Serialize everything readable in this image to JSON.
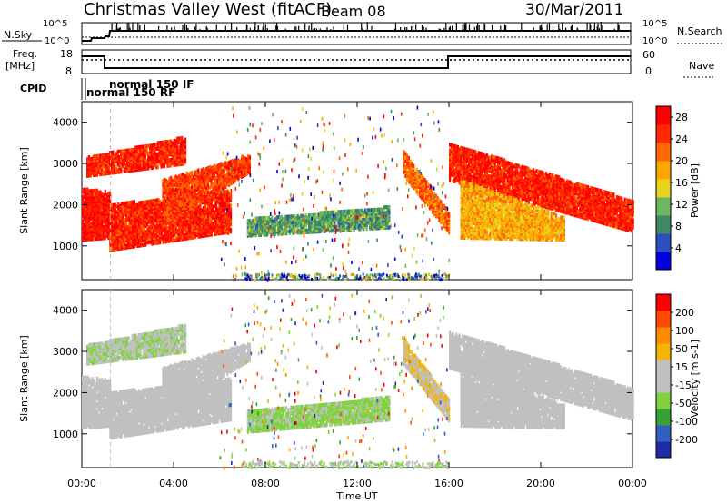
{
  "header": {
    "station": "Christmas Valley West (fitACF)",
    "beam": "Beam 08",
    "date": "30/Mar/2011"
  },
  "top_panel": {
    "left_labels": [
      "N.Sky",
      "Freq.",
      "[MHz]",
      "CPID"
    ],
    "right_labels": [
      "N.Search",
      "Nave"
    ],
    "nsky_ticks": [
      "10^5",
      "10^0"
    ],
    "nsearch_ticks": [
      "10^5",
      "10^0"
    ],
    "freq_ticks": [
      "18",
      "8"
    ],
    "nave_ticks": [
      "60",
      "0"
    ],
    "cpid_labels": [
      "normal 150 IF",
      "normal 150 RF"
    ]
  },
  "colors": {
    "power": [
      "#0000e0",
      "#2d4fbd",
      "#3d8a64",
      "#6fb75c",
      "#e9d21c",
      "#ffa500",
      "#ff6a00",
      "#ff2a00",
      "#ff0000"
    ],
    "velocity": [
      "#1f2ca8",
      "#2f5fc0",
      "#35a035",
      "#7ed43a",
      "#c0c0c0",
      "#c0c0c0",
      "#f4b400",
      "#ff8a00",
      "#ff4a00",
      "#ff0000"
    ],
    "ground_scatter": "#c0c0c0"
  },
  "chart_data": [
    {
      "type": "heatmap",
      "title": "Power",
      "xlabel": "Time UT",
      "ylabel": "Slant Range [km]",
      "x_ticks": [
        "00:00",
        "04:00",
        "08:00",
        "12:00",
        "16:00",
        "20:00",
        "00:00"
      ],
      "y_ticks": [
        "1000",
        "2000",
        "3000",
        "4000"
      ],
      "xlim": [
        0,
        24
      ],
      "ylim": [
        180,
        4500
      ],
      "colorbar": {
        "label": "Power [dB]",
        "ticks": [
          "4",
          "8",
          "12",
          "16",
          "20",
          "24",
          "28"
        ],
        "range": [
          0,
          30
        ]
      },
      "regions": [
        {
          "t": [
            0.0,
            1.2
          ],
          "r_low": [
            1150,
            1200
          ],
          "r_high": [
            2400,
            2300
          ],
          "value": 27
        },
        {
          "t": [
            1.2,
            6.5
          ],
          "r_low": [
            900,
            1350
          ],
          "r_high": [
            2000,
            2350
          ],
          "value": 26
        },
        {
          "t": [
            0.2,
            4.5
          ],
          "r_low": [
            2700,
            3000
          ],
          "r_high": [
            3150,
            3650
          ],
          "value": 26
        },
        {
          "t": [
            3.5,
            7.3
          ],
          "r_low": [
            1500,
            2800
          ],
          "r_high": [
            2600,
            3200
          ],
          "value": 24
        },
        {
          "t": [
            7.2,
            13.4
          ],
          "r_low": [
            1250,
            1450
          ],
          "r_high": [
            1650,
            1950
          ],
          "value": 10
        },
        {
          "t": [
            14.0,
            16.0
          ],
          "r_low": [
            2700,
            1300
          ],
          "r_high": [
            3300,
            1800
          ],
          "value": 22
        },
        {
          "t": [
            16.0,
            24.0
          ],
          "r_low": [
            2600,
            1350
          ],
          "r_high": [
            3500,
            2100
          ],
          "value": 26
        },
        {
          "t": [
            16.5,
            21.0
          ],
          "r_low": [
            1200,
            1150
          ],
          "r_high": [
            2600,
            1700
          ],
          "value": 18
        }
      ]
    },
    {
      "type": "heatmap",
      "title": "Velocity",
      "xlabel": "Time UT",
      "ylabel": "Slant Range [km]",
      "x_ticks": [
        "00:00",
        "04:00",
        "08:00",
        "12:00",
        "16:00",
        "20:00",
        "00:00"
      ],
      "y_ticks": [
        "1000",
        "2000",
        "3000",
        "4000"
      ],
      "xlim": [
        0,
        24
      ],
      "ylim": [
        180,
        4500
      ],
      "colorbar": {
        "label": "Velocity [m s-1]",
        "ticks": [
          "200",
          "100",
          "50",
          "15",
          "-15",
          "-50",
          "-100",
          "-200"
        ],
        "range": [
          -250,
          250
        ]
      },
      "regions": [
        {
          "t": [
            0.0,
            1.2
          ],
          "r_low": [
            1150,
            1200
          ],
          "r_high": [
            2400,
            2300
          ],
          "value": 0
        },
        {
          "t": [
            1.2,
            6.5
          ],
          "r_low": [
            900,
            1350
          ],
          "r_high": [
            2000,
            2350
          ],
          "value": 0
        },
        {
          "t": [
            0.2,
            4.5
          ],
          "r_low": [
            2700,
            3000
          ],
          "r_high": [
            3150,
            3650
          ],
          "value": -40
        },
        {
          "t": [
            3.5,
            7.3
          ],
          "r_low": [
            1500,
            2800
          ],
          "r_high": [
            2600,
            3200
          ],
          "value": 0
        },
        {
          "t": [
            7.2,
            13.4
          ],
          "r_low": [
            1050,
            1350
          ],
          "r_high": [
            1550,
            1900
          ],
          "value": -60
        },
        {
          "t": [
            14.0,
            16.0
          ],
          "r_low": [
            2700,
            1300
          ],
          "r_high": [
            3300,
            1800
          ],
          "value": 40
        },
        {
          "t": [
            16.0,
            24.0
          ],
          "r_low": [
            2600,
            1350
          ],
          "r_high": [
            3500,
            2100
          ],
          "value": 0
        },
        {
          "t": [
            16.5,
            21.0
          ],
          "r_low": [
            1200,
            1150
          ],
          "r_high": [
            2600,
            1700
          ],
          "value": 0
        }
      ]
    }
  ]
}
